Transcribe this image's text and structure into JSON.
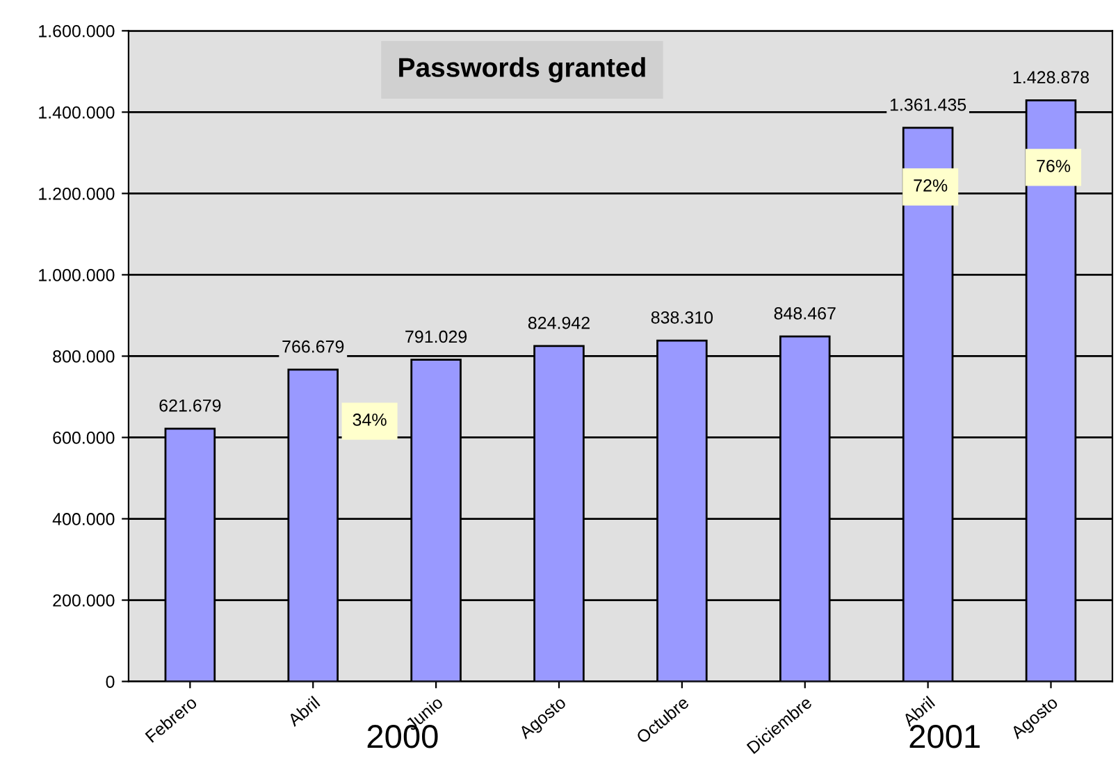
{
  "chart_data": {
    "type": "bar",
    "title": "Passwords granted",
    "categories": [
      "Febrero",
      "Abril",
      "Junio",
      "Agosto",
      "Octubre",
      "Diciembre",
      "Abril",
      "Agosto"
    ],
    "values": [
      621679,
      766679,
      791029,
      824942,
      838310,
      848467,
      1361435,
      1428878
    ],
    "value_labels": [
      "621.679",
      "766.679",
      "791.029",
      "824.942",
      "838.310",
      "848.467",
      "1.361.435",
      "1.428.878"
    ],
    "color": "#9999ff",
    "ylim": [
      0,
      1600000
    ],
    "yticks": [
      0,
      {
        "value": 200000,
        "label": "200.000"
      },
      {
        "value": 400000,
        "label": "400.000"
      },
      {
        "value": 600000,
        "label": "600.000"
      },
      {
        "value": 800000,
        "label": "800.000"
      },
      {
        "value": 1000000,
        "label": "1.000.000"
      },
      {
        "value": 1200000,
        "label": "1.200.000"
      },
      {
        "value": 1400000,
        "label": "1.400.000"
      },
      {
        "value": 1600000,
        "label": "1.600.000"
      }
    ],
    "grid": "y",
    "annotations": [
      "34%",
      "72%",
      "76%",
      "2000",
      "2001"
    ]
  }
}
